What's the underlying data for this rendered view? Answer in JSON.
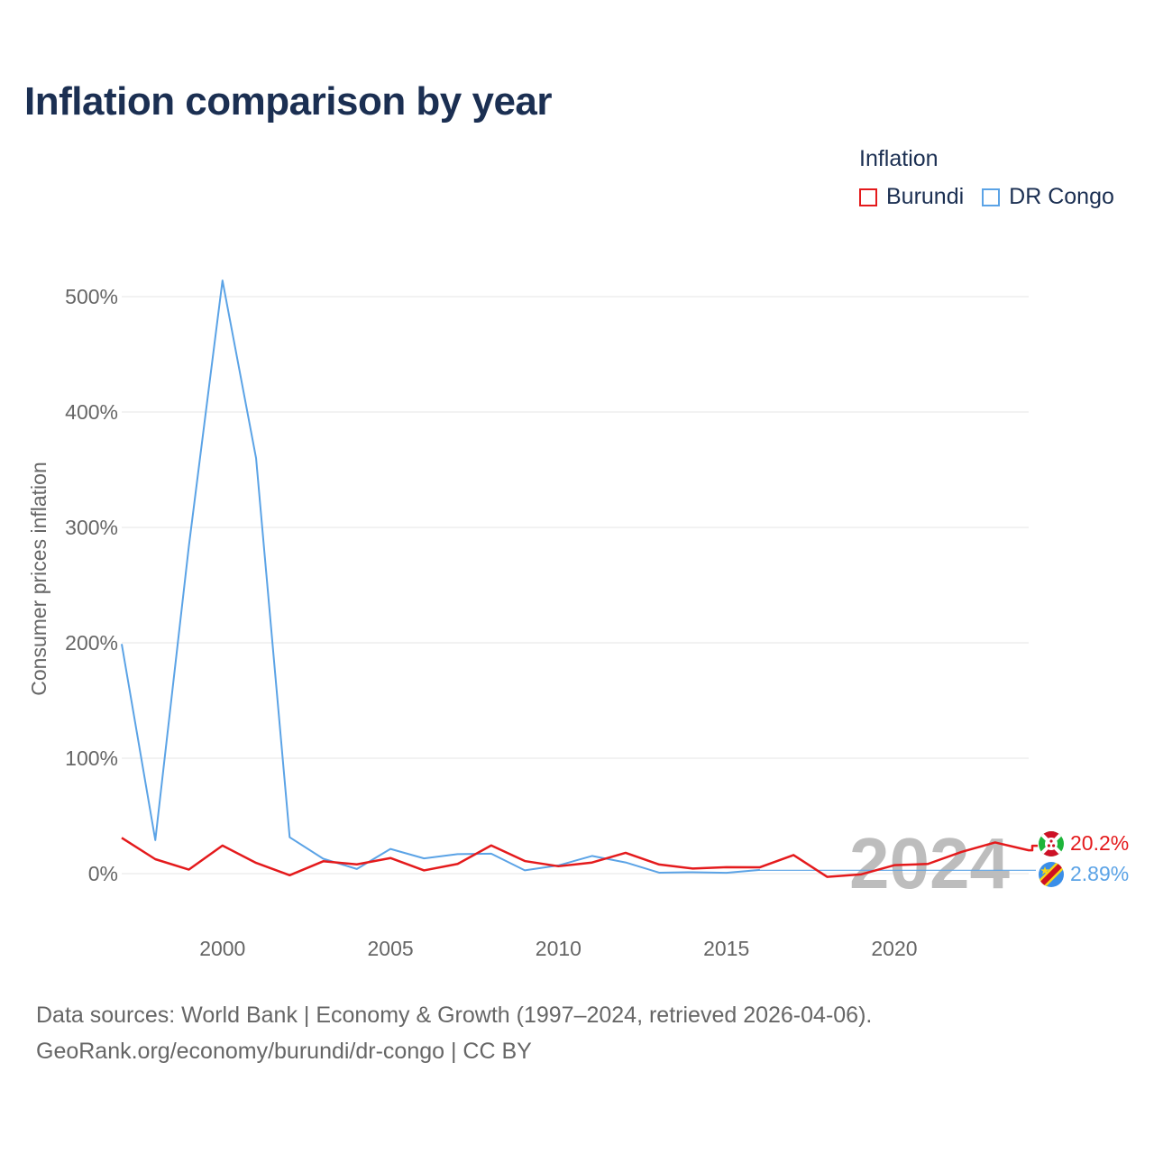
{
  "title": "Inflation comparison by year",
  "legend": {
    "title": "Inflation",
    "items": [
      {
        "label": "Burundi",
        "color": "#e41a1c"
      },
      {
        "label": "DR Congo",
        "color": "#5ba3e6"
      }
    ]
  },
  "end_labels": {
    "burundi": "20.2%",
    "drcongo": "2.89%"
  },
  "year_watermark": "2024",
  "footer": {
    "line1": "Data sources: World Bank | Economy & Growth (1997–2024, retrieved 2026-04-06).",
    "line2": "GeoRank.org/economy/burundi/dr-congo | CC BY"
  },
  "icons": {
    "burundi_flag": "burundi-flag-icon",
    "drcongo_flag": "drcongo-flag-icon"
  },
  "chart_data": {
    "type": "line",
    "ylabel": "Consumer prices inflation",
    "xlabel": "",
    "xlim": [
      1997,
      2024
    ],
    "ylim": [
      -50,
      520
    ],
    "x_ticks": [
      2000,
      2005,
      2010,
      2015,
      2020
    ],
    "x_tick_labels": [
      "2000",
      "2005",
      "2010",
      "2015",
      "2020"
    ],
    "y_ticks": [
      0,
      100,
      200,
      300,
      400,
      500
    ],
    "y_tick_labels": [
      "0%",
      "100%",
      "200%",
      "300%",
      "400%",
      "500%"
    ],
    "series": [
      {
        "name": "Burundi",
        "color": "#e41a1c",
        "x": [
          1997,
          1998,
          1999,
          2000,
          2001,
          2002,
          2003,
          2004,
          2005,
          2006,
          2007,
          2008,
          2009,
          2010,
          2011,
          2012,
          2013,
          2014,
          2015,
          2016,
          2017,
          2018,
          2019,
          2020,
          2021,
          2022,
          2023,
          2024
        ],
        "y": [
          31,
          12.5,
          3.5,
          24.3,
          9.3,
          -1.4,
          10.7,
          8,
          13.5,
          2.8,
          8.4,
          24.4,
          10.9,
          6.4,
          9.6,
          18,
          7.9,
          4.4,
          5.6,
          5.5,
          16.1,
          -2.8,
          -0.7,
          7.3,
          8.4,
          18.8,
          27,
          20.2
        ]
      },
      {
        "name": "DR Congo",
        "color": "#5ba3e6",
        "x": [
          1997,
          1998,
          1999,
          2000,
          2001,
          2002,
          2003,
          2004,
          2005,
          2006,
          2007,
          2008,
          2009,
          2010,
          2011,
          2012,
          2013,
          2014,
          2015,
          2016,
          2024
        ],
        "y": [
          199,
          29,
          284,
          514,
          360,
          31.5,
          12.9,
          4,
          21.4,
          13.2,
          16.9,
          17.3,
          2.8,
          7.1,
          15.3,
          9.7,
          0.8,
          1.2,
          0.7,
          3.2,
          2.89
        ]
      }
    ]
  }
}
